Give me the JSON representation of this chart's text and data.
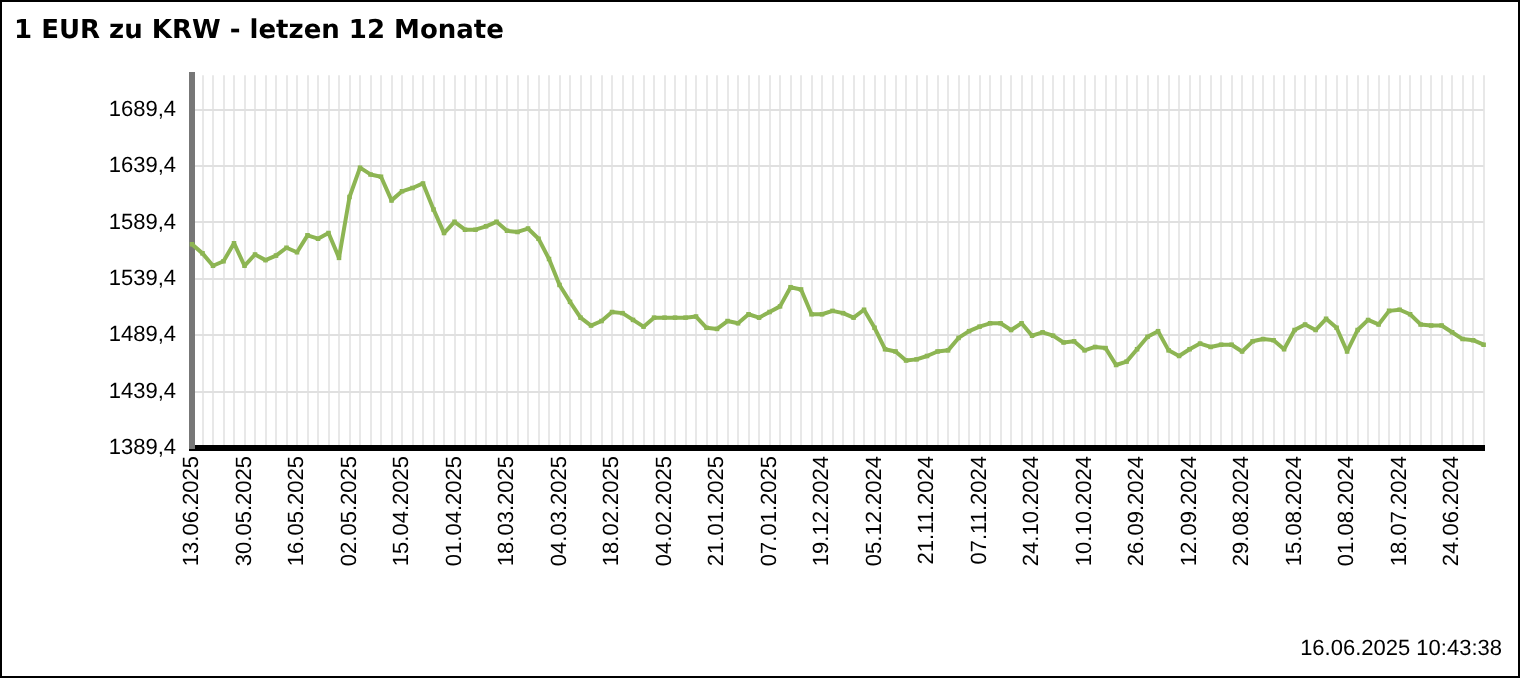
{
  "chart_data": {
    "type": "line",
    "title": "1 EUR zu KRW - letzen 12 Monate",
    "categories": [
      "13.06.2025",
      null,
      null,
      null,
      null,
      "30.05.2025",
      null,
      null,
      null,
      null,
      "16.05.2025",
      null,
      null,
      null,
      null,
      "02.05.2025",
      null,
      null,
      null,
      null,
      "15.04.2025",
      null,
      null,
      null,
      null,
      "01.04.2025",
      null,
      null,
      null,
      null,
      "18.03.2025",
      null,
      null,
      null,
      null,
      "04.03.2025",
      null,
      null,
      null,
      null,
      "18.02.2025",
      null,
      null,
      null,
      null,
      "04.02.2025",
      null,
      null,
      null,
      null,
      "21.01.2025",
      null,
      null,
      null,
      null,
      "07.01.2025",
      null,
      null,
      null,
      null,
      "19.12.2024",
      null,
      null,
      null,
      null,
      "05.12.2024",
      null,
      null,
      null,
      null,
      "21.11.2024",
      null,
      null,
      null,
      null,
      "07.11.2024",
      null,
      null,
      null,
      null,
      "24.10.2024",
      null,
      null,
      null,
      null,
      "10.10.2024",
      null,
      null,
      null,
      null,
      "26.09.2024",
      null,
      null,
      null,
      null,
      "12.09.2024",
      null,
      null,
      null,
      null,
      "29.08.2024",
      null,
      null,
      null,
      null,
      "15.08.2024",
      null,
      null,
      null,
      null,
      "01.08.2024",
      null,
      null,
      null,
      null,
      "18.07.2024",
      null,
      null,
      null,
      null,
      "24.06.2024",
      null,
      null,
      null
    ],
    "series": [
      {
        "color": "#8db553",
        "values": [
          1570,
          1562,
          1551,
          1555,
          1571,
          1551,
          1561,
          1556,
          1560,
          1567,
          1563,
          1578,
          1575,
          1580,
          1558,
          1612,
          1638,
          1632,
          1630,
          1609,
          1617,
          1620,
          1624,
          1601,
          1580,
          1590,
          1583,
          1583,
          1586,
          1590,
          1582,
          1581,
          1584,
          1575,
          1557,
          1534,
          1519,
          1505,
          1498,
          1502,
          1510,
          1509,
          1503,
          1497,
          1505,
          1505,
          1505,
          1505,
          1506,
          1496,
          1495,
          1502,
          1500,
          1508,
          1505,
          1510,
          1515,
          1532,
          1530,
          1508,
          1508,
          1511,
          1509,
          1505,
          1512,
          1496,
          1477,
          1475,
          1467,
          1468,
          1471,
          1475,
          1476,
          1487,
          1493,
          1497,
          1500,
          1500,
          1494,
          1500,
          1489,
          1492,
          1489,
          1483,
          1484,
          1476,
          1479,
          1478,
          1463,
          1466,
          1477,
          1488,
          1493,
          1476,
          1471,
          1477,
          1482,
          1479,
          1481,
          1481,
          1475,
          1484,
          1486,
          1485,
          1477,
          1494,
          1499,
          1494,
          1504,
          1496,
          1475,
          1494,
          1503,
          1499,
          1511,
          1512,
          1508,
          1499,
          1498,
          1498,
          1492,
          1486,
          1485,
          1481
        ]
      }
    ],
    "ylim": [
      1389.4,
      1720
    ],
    "yticks": [
      {
        "value": 1389.4,
        "label": "1389,4"
      },
      {
        "value": 1439.4,
        "label": "1439,4"
      },
      {
        "value": 1489.4,
        "label": "1489,4"
      },
      {
        "value": 1539.4,
        "label": "1539,4"
      },
      {
        "value": 1589.4,
        "label": "1589,4"
      },
      {
        "value": 1639.4,
        "label": "1639,4"
      },
      {
        "value": 1689.4,
        "label": "1689,4"
      }
    ],
    "grid": true,
    "legend": false,
    "marker": "square",
    "line_style": "solid",
    "annotations": [
      "16.06.2025 10:43:38"
    ]
  }
}
